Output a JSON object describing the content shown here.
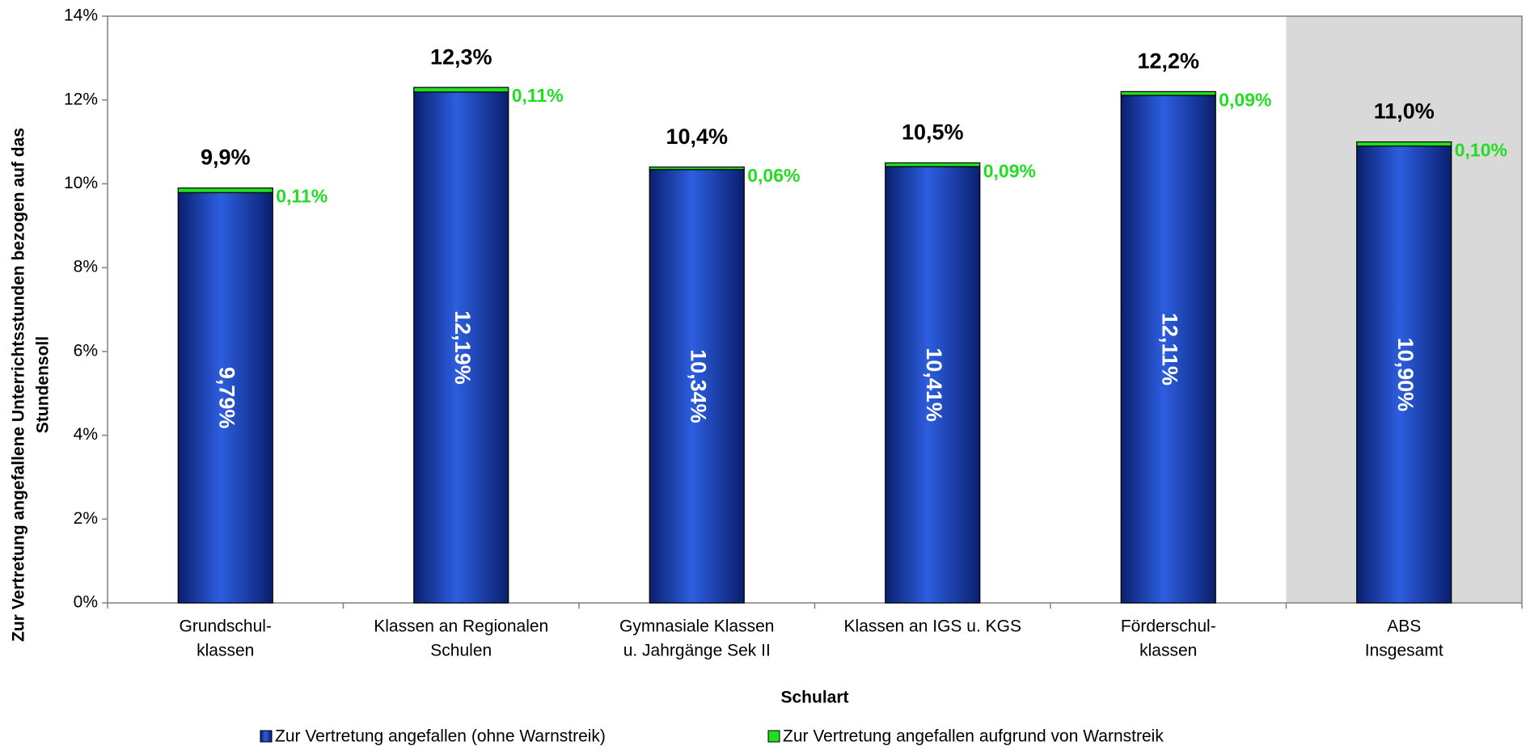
{
  "chart_data": {
    "type": "stacked-bar",
    "categories": [
      [
        "Grundschul-",
        "klassen"
      ],
      [
        "Klassen an Regionalen",
        "Schulen"
      ],
      [
        "Gymnasiale Klassen",
        "u. Jahrgänge Sek II"
      ],
      [
        "Klassen an IGS u. KGS"
      ],
      [
        "Förderschul-",
        "klassen"
      ],
      [
        "ABS",
        "Insgesamt"
      ]
    ],
    "series": [
      {
        "name": "Zur Vertretung angefallen (ohne Warnstreik)",
        "color": "#1a3fb8",
        "values": [
          9.79,
          12.19,
          10.34,
          10.41,
          12.11,
          10.9
        ],
        "value_labels": [
          "9,79%",
          "12,19%",
          "10,34%",
          "10,41%",
          "12,11%",
          "10,90%"
        ]
      },
      {
        "name": "Zur Vertretung angefallen aufgrund von Warnstreik",
        "color": "#22dd22",
        "values": [
          0.11,
          0.11,
          0.06,
          0.09,
          0.09,
          0.1
        ],
        "value_labels": [
          "0,11%",
          "0,11%",
          "0,06%",
          "0,09%",
          "0,09%",
          "0,10%"
        ]
      }
    ],
    "totals": [
      9.9,
      12.3,
      10.4,
      10.5,
      12.2,
      11.0
    ],
    "total_labels": [
      "9,9%",
      "12,3%",
      "10,4%",
      "10,5%",
      "12,2%",
      "11,0%"
    ],
    "x_label": "Schulart",
    "y_label": [
      "Zur Vertretung angefallene Unterrichtsstunden bezogen auf das",
      "Stundensoll"
    ],
    "ylim": [
      0,
      14
    ],
    "yticks": [
      {
        "value": 0,
        "label": "0%"
      },
      {
        "value": 2,
        "label": "2%"
      },
      {
        "value": 4,
        "label": "4%"
      },
      {
        "value": 6,
        "label": "6%"
      },
      {
        "value": 8,
        "label": "8%"
      },
      {
        "value": 10,
        "label": "10%"
      },
      {
        "value": 12,
        "label": "12%"
      },
      {
        "value": 14,
        "label": "14%"
      }
    ],
    "highlighted_categories": [
      5
    ],
    "highlight_color": "#d9d9d9",
    "legend": "bottom"
  }
}
